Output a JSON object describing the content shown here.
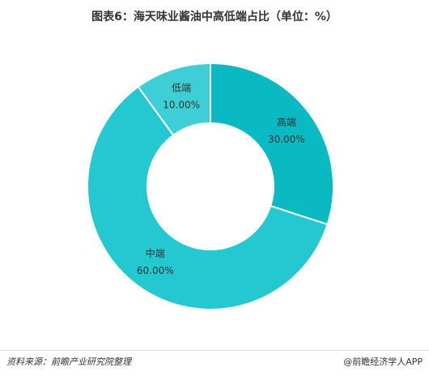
{
  "title": "图表6：海天味业酱油中高低端占比（单位：%）",
  "chart_data": {
    "type": "pie",
    "donut": true,
    "title": "图表6：海天味业酱油中高低端占比（单位：%）",
    "categories": [
      "高端",
      "中端",
      "低端"
    ],
    "values": [
      30.0,
      60.0,
      10.0
    ],
    "value_labels": [
      "30.00%",
      "60.00%",
      "10.00%"
    ],
    "colors": [
      "#0abac3",
      "#23c8d1",
      "#3ecfd6"
    ],
    "start_angle_deg": 0,
    "direction": "clockwise",
    "legend": "none"
  },
  "footer": {
    "source": "资料来源：前瞻产业研究院整理",
    "brand": "@前瞻经济学人APP"
  }
}
